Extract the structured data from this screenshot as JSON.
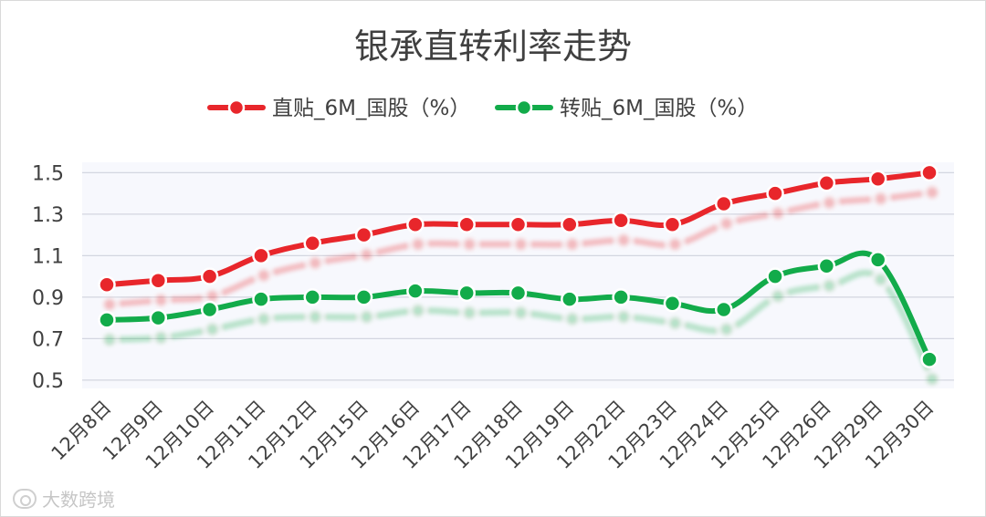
{
  "chart_data": {
    "type": "line",
    "title": "银承直转利率走势",
    "categories": [
      "12月8日",
      "12月9日",
      "12月10日",
      "12月11日",
      "12月12日",
      "12月15日",
      "12月16日",
      "12月17日",
      "12月18日",
      "12月19日",
      "12月22日",
      "12月23日",
      "12月24日",
      "12月25日",
      "12月26日",
      "12月29日",
      "12月30日"
    ],
    "series": [
      {
        "name": "直贴_6M_国股（%）",
        "color": "#e8262b",
        "values": [
          0.96,
          0.98,
          1.0,
          1.1,
          1.16,
          1.2,
          1.25,
          1.25,
          1.25,
          1.25,
          1.27,
          1.25,
          1.35,
          1.4,
          1.45,
          1.47,
          1.5
        ]
      },
      {
        "name": "转贴_6M_国股（%）",
        "color": "#12ab4a",
        "values": [
          0.79,
          0.8,
          0.84,
          0.89,
          0.9,
          0.9,
          0.93,
          0.92,
          0.92,
          0.89,
          0.9,
          0.87,
          0.84,
          1.0,
          1.05,
          1.08,
          0.6
        ]
      }
    ],
    "yticks": [
      "0.5",
      "0.7",
      "0.9",
      "1.1",
      "1.3",
      "1.5"
    ],
    "ylim": [
      0.46,
      1.55
    ],
    "grid": true,
    "legend_position": "top-center"
  },
  "watermark": {
    "text": "大数跨境"
  }
}
